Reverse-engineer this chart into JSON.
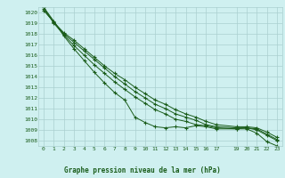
{
  "title": "Graphe pression niveau de la mer (hPa)",
  "background_color": "#cff0f0",
  "grid_color": "#aacfcf",
  "line_color": "#1a5c1a",
  "marker_color": "#1a5c1a",
  "xlim": [
    -0.5,
    23.5
  ],
  "ylim": [
    1007.5,
    1020.5
  ],
  "yticks": [
    1008,
    1009,
    1010,
    1011,
    1012,
    1013,
    1014,
    1015,
    1016,
    1017,
    1018,
    1019,
    1020
  ],
  "xticks": [
    0,
    1,
    2,
    3,
    4,
    5,
    6,
    7,
    8,
    9,
    10,
    11,
    12,
    13,
    14,
    15,
    16,
    17,
    19,
    20,
    21,
    22,
    23
  ],
  "series": [
    [
      1020.5,
      1019.2,
      1017.8,
      1016.6,
      1015.5,
      1014.4,
      1013.4,
      1012.5,
      1011.8,
      1010.2,
      1009.7,
      1009.3,
      1009.2,
      1009.3,
      1009.2,
      1009.4,
      1009.3,
      1009.1,
      1009.1,
      1009.1,
      1008.7,
      1007.9,
      1007.5
    ],
    [
      1020.5,
      1019.0,
      1017.9,
      1016.9,
      1016.0,
      1015.1,
      1014.3,
      1013.5,
      1012.8,
      1012.1,
      1011.5,
      1010.9,
      1010.5,
      1010.0,
      1009.8,
      1009.5,
      1009.4,
      1009.2,
      1009.1,
      1009.2,
      1009.0,
      1008.5,
      1008.0
    ],
    [
      1020.3,
      1019.1,
      1018.0,
      1017.2,
      1016.4,
      1015.6,
      1014.8,
      1014.0,
      1013.3,
      1012.6,
      1012.0,
      1011.4,
      1011.0,
      1010.5,
      1010.2,
      1009.9,
      1009.5,
      1009.3,
      1009.2,
      1009.2,
      1009.1,
      1008.6,
      1008.1
    ],
    [
      1020.2,
      1019.1,
      1018.1,
      1017.4,
      1016.6,
      1015.8,
      1015.0,
      1014.3,
      1013.7,
      1013.0,
      1012.4,
      1011.8,
      1011.4,
      1010.9,
      1010.5,
      1010.2,
      1009.8,
      1009.5,
      1009.3,
      1009.3,
      1009.2,
      1008.8,
      1008.3
    ]
  ],
  "x_values": [
    0,
    1,
    2,
    3,
    4,
    5,
    6,
    7,
    8,
    9,
    10,
    11,
    12,
    13,
    14,
    15,
    16,
    17,
    19,
    20,
    21,
    22,
    23
  ]
}
